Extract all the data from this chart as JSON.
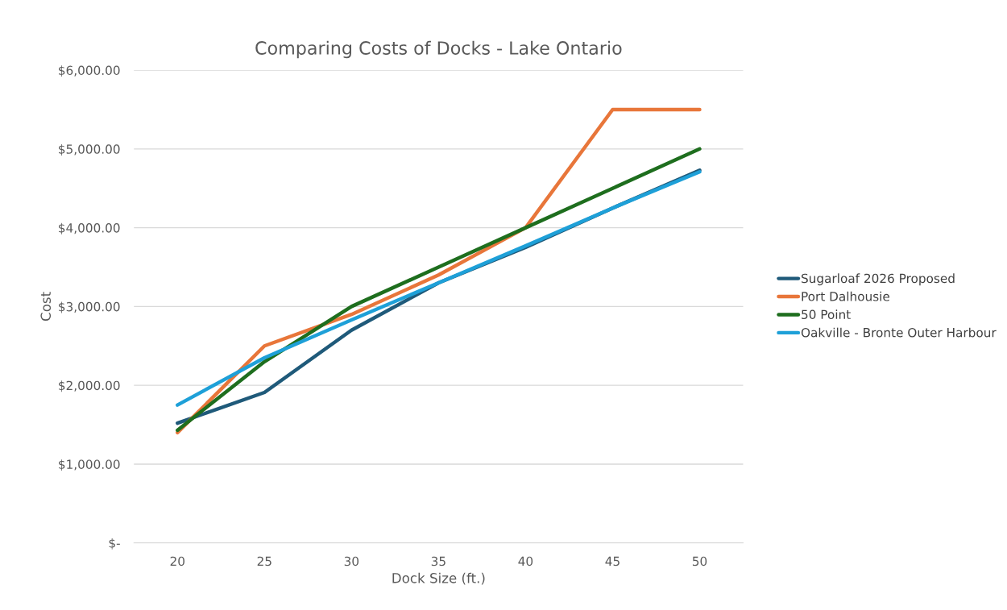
{
  "chart_data": {
    "type": "line",
    "title": "Comparing Costs of Docks - Lake Ontario",
    "xlabel": "Dock Size (ft.)",
    "ylabel": "Cost",
    "categories": [
      "20",
      "25",
      "30",
      "35",
      "40",
      "45",
      "50"
    ],
    "series": [
      {
        "name": "Sugarloaf 2026 Proposed",
        "color": "#1f5a7a",
        "values": [
          1520,
          1910,
          2700,
          3300,
          3750,
          4250,
          4730
        ]
      },
      {
        "name": "Port Dalhousie",
        "color": "#e8763a",
        "values": [
          1400,
          2500,
          2900,
          3400,
          4000,
          5500,
          5500
        ]
      },
      {
        "name": "50 Point",
        "color": "#1e6e1e",
        "values": [
          1430,
          2300,
          3000,
          3500,
          4000,
          4500,
          5000
        ]
      },
      {
        "name": "Oakville - Bronte Outer Harbour",
        "color": "#1ea0d8",
        "values": [
          1750,
          2350,
          2830,
          3300,
          3770,
          4250,
          4710
        ]
      }
    ],
    "ylim": [
      0,
      6000
    ],
    "yticks": [
      {
        "value": 0,
        "label": "$-"
      },
      {
        "value": 1000,
        "label": "$1,000.00"
      },
      {
        "value": 2000,
        "label": "$2,000.00"
      },
      {
        "value": 3000,
        "label": "$3,000.00"
      },
      {
        "value": 4000,
        "label": "$4,000.00"
      },
      {
        "value": 5000,
        "label": "$5,000.00"
      },
      {
        "value": 6000,
        "label": "$6,000.00"
      }
    ],
    "grid": "y",
    "legend": "right",
    "marker": "none",
    "line_style": "solid"
  }
}
